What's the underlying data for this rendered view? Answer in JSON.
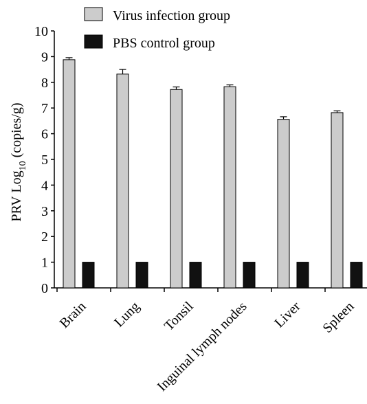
{
  "chart_data": {
    "type": "bar",
    "categories": [
      "Brain",
      "Lung",
      "Tonsil",
      "Inguinal lymph nodes",
      "Liver",
      "Spleen"
    ],
    "series": [
      {
        "name": "Virus infection group",
        "color": "#cccccc",
        "values": [
          8.88,
          8.32,
          7.72,
          7.83,
          6.56,
          6.82
        ],
        "errors": [
          0.08,
          0.18,
          0.1,
          0.07,
          0.1,
          0.07
        ]
      },
      {
        "name": "PBS control group",
        "color": "#111111",
        "values": [
          1.0,
          1.0,
          1.0,
          1.0,
          1.0,
          1.0
        ],
        "errors": [
          0,
          0,
          0,
          0,
          0,
          0
        ]
      }
    ],
    "ylabel_main": "PRV Log",
    "ylabel_sub": "10",
    "ylabel_tail": " (copies/g)",
    "ylim": [
      0,
      10
    ],
    "yticks": [
      0,
      1,
      2,
      3,
      4,
      5,
      6,
      7,
      8,
      9,
      10
    ],
    "legend_position": "top"
  }
}
